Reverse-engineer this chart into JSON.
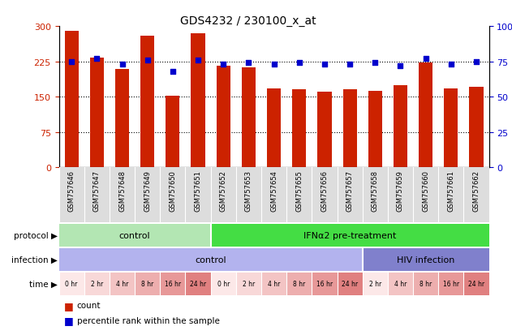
{
  "title": "GDS4232 / 230100_x_at",
  "samples": [
    "GSM757646",
    "GSM757647",
    "GSM757648",
    "GSM757649",
    "GSM757650",
    "GSM757651",
    "GSM757652",
    "GSM757653",
    "GSM757654",
    "GSM757655",
    "GSM757656",
    "GSM757657",
    "GSM757658",
    "GSM757659",
    "GSM757660",
    "GSM757661",
    "GSM757662"
  ],
  "counts": [
    290,
    233,
    208,
    280,
    152,
    285,
    215,
    213,
    168,
    165,
    160,
    165,
    163,
    175,
    222,
    168,
    170
  ],
  "percentiles": [
    75,
    77,
    73,
    76,
    68,
    76,
    73,
    74,
    73,
    74,
    73,
    73,
    74,
    72,
    77,
    73,
    75
  ],
  "bar_color": "#cc2200",
  "dot_color": "#0000cc",
  "ylim_left": [
    0,
    300
  ],
  "ylim_right": [
    0,
    100
  ],
  "yticks_left": [
    0,
    75,
    150,
    225,
    300
  ],
  "yticks_right": [
    0,
    25,
    50,
    75,
    100
  ],
  "grid_values": [
    75,
    150,
    225
  ],
  "protocol_groups": [
    {
      "label": "control",
      "start": 0,
      "end": 6,
      "color": "#b3e6b3"
    },
    {
      "label": "IFNα2 pre-treatment",
      "start": 6,
      "end": 17,
      "color": "#44dd44"
    }
  ],
  "infection_groups": [
    {
      "label": "control",
      "start": 0,
      "end": 12,
      "color": "#b3b3ee"
    },
    {
      "label": "HIV infection",
      "start": 12,
      "end": 17,
      "color": "#8080cc"
    }
  ],
  "time_labels": [
    "0 hr",
    "2 hr",
    "4 hr",
    "8 hr",
    "16 hr",
    "24 hr",
    "0 hr",
    "2 hr",
    "4 hr",
    "8 hr",
    "16 hr",
    "24 hr",
    "2 hr",
    "4 hr",
    "8 hr",
    "16 hr",
    "24 hr"
  ],
  "time_colors": [
    "#fce8e8",
    "#f8d8d8",
    "#f3c4c4",
    "#edaeae",
    "#e79898",
    "#e08080",
    "#fce8e8",
    "#f8d8d8",
    "#f3c4c4",
    "#edaeae",
    "#e79898",
    "#e08080",
    "#fce8e8",
    "#f3c4c4",
    "#edaeae",
    "#e79898",
    "#e08080"
  ],
  "legend_count_color": "#cc2200",
  "legend_pct_color": "#0000cc",
  "bg_color": "#ffffff",
  "plot_bg": "#ffffff",
  "left_axis_color": "#cc2200",
  "right_axis_color": "#0000cc",
  "xticklabels_bg": "#dddddd"
}
